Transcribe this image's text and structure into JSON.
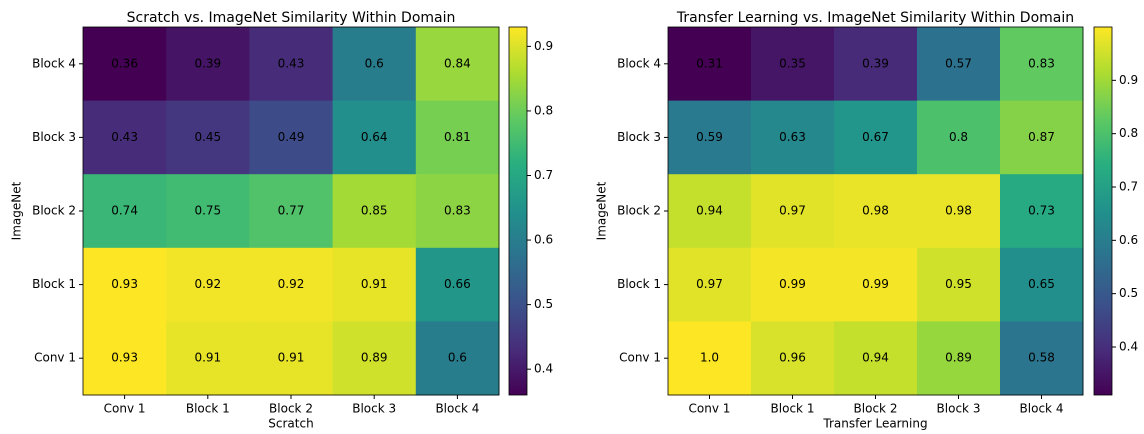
{
  "chart_data": [
    {
      "type": "heatmap",
      "title": "Scratch vs. ImageNet Similarity Within Domain",
      "xlabel": "Scratch",
      "ylabel": "ImageNet",
      "x_categories": [
        "Conv 1",
        "Block 1",
        "Block 2",
        "Block 3",
        "Block 4"
      ],
      "y_categories": [
        "Block 4",
        "Block 3",
        "Block 2",
        "Block 1",
        "Conv 1"
      ],
      "values": [
        [
          0.36,
          0.39,
          0.43,
          0.6,
          0.84
        ],
        [
          0.43,
          0.45,
          0.49,
          0.64,
          0.81
        ],
        [
          0.74,
          0.75,
          0.77,
          0.85,
          0.83
        ],
        [
          0.93,
          0.92,
          0.92,
          0.91,
          0.66
        ],
        [
          0.93,
          0.91,
          0.91,
          0.89,
          0.6
        ]
      ],
      "colormap": "viridis",
      "clim": [
        0.36,
        0.93
      ],
      "cticks": [
        0.4,
        0.5,
        0.6,
        0.7,
        0.8,
        0.9
      ]
    },
    {
      "type": "heatmap",
      "title": "Transfer Learning vs. ImageNet Similarity Within Domain",
      "xlabel": "Transfer Learning",
      "ylabel": "ImageNet",
      "x_categories": [
        "Conv 1",
        "Block 1",
        "Block 2",
        "Block 3",
        "Block 4"
      ],
      "y_categories": [
        "Block 4",
        "Block 3",
        "Block 2",
        "Block 1",
        "Conv 1"
      ],
      "values": [
        [
          0.31,
          0.35,
          0.39,
          0.57,
          0.83
        ],
        [
          0.59,
          0.63,
          0.67,
          0.8,
          0.87
        ],
        [
          0.94,
          0.97,
          0.98,
          0.98,
          0.73
        ],
        [
          0.97,
          0.99,
          0.99,
          0.95,
          0.65
        ],
        [
          1,
          0.96,
          0.94,
          0.89,
          0.58
        ]
      ],
      "value_labels": [
        [
          "0.31",
          "0.35",
          "0.39",
          "0.57",
          "0.83"
        ],
        [
          "0.59",
          "0.63",
          "0.67",
          "0.8",
          "0.87"
        ],
        [
          "0.94",
          "0.97",
          "0.98",
          "0.98",
          "0.73"
        ],
        [
          "0.97",
          "0.99",
          "0.99",
          "0.95",
          "0.65"
        ],
        [
          "1.0",
          "0.96",
          "0.94",
          "0.89",
          "0.58"
        ]
      ],
      "colormap": "viridis",
      "clim": [
        0.31,
        1.0
      ],
      "cticks": [
        0.4,
        0.5,
        0.6,
        0.7,
        0.8,
        0.9
      ]
    }
  ]
}
